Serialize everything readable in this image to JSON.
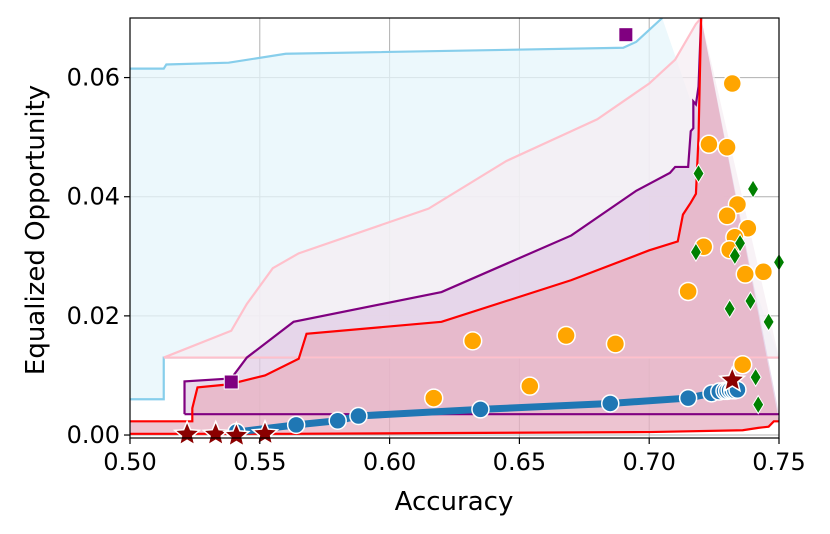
{
  "chart_data": {
    "type": "scatter",
    "xlabel": "Accuracy",
    "ylabel": "Equalized Opportunity",
    "xlim": [
      0.5,
      0.75
    ],
    "ylim": [
      -0.0005,
      0.07
    ],
    "xticks": [
      "0.50",
      "0.55",
      "0.60",
      "0.65",
      "0.70",
      "0.75"
    ],
    "yticks": [
      "0.00",
      "0.02",
      "0.04",
      "0.06"
    ],
    "grid": true,
    "colors": {
      "cyan": "#87ceeb",
      "pink": "#ffc0cb",
      "purple": "#800080",
      "red": "#ff0000",
      "orange": "#ffa500",
      "green": "#008000",
      "blue": "#1f77b4",
      "darkred": "#8b0000"
    },
    "bands": [
      {
        "color": "#87ceeb",
        "fill": "#e6f5fb",
        "upper": [
          [
            0.5,
            0.0615
          ],
          [
            0.513,
            0.0615
          ],
          [
            0.514,
            0.0622
          ],
          [
            0.538,
            0.0625
          ],
          [
            0.56,
            0.064
          ],
          [
            0.69,
            0.065
          ],
          [
            0.695,
            0.066
          ],
          [
            0.705,
            0.07
          ]
        ],
        "lower": [
          [
            0.5,
            0.006
          ],
          [
            0.513,
            0.006
          ],
          [
            0.513,
            0.013
          ],
          [
            0.55,
            0.013
          ],
          [
            0.75,
            0.013
          ]
        ]
      },
      {
        "color": "#ffc0cb",
        "fill": "#f5eef3",
        "upper": [
          [
            0.513,
            0.013
          ],
          [
            0.539,
            0.0175
          ],
          [
            0.545,
            0.022
          ],
          [
            0.555,
            0.028
          ],
          [
            0.565,
            0.0305
          ],
          [
            0.615,
            0.038
          ],
          [
            0.645,
            0.046
          ],
          [
            0.68,
            0.053
          ],
          [
            0.695,
            0.0575
          ],
          [
            0.7,
            0.059
          ],
          [
            0.705,
            0.061
          ],
          [
            0.71,
            0.063
          ],
          [
            0.718,
            0.069
          ],
          [
            0.72,
            0.07
          ]
        ],
        "lower": [
          [
            0.513,
            0.013
          ],
          [
            0.75,
            0.013
          ]
        ]
      },
      {
        "color": "#800080",
        "fill": "#e2cde6",
        "upper": [
          [
            0.521,
            0.0035
          ],
          [
            0.521,
            0.009
          ],
          [
            0.539,
            0.0095
          ],
          [
            0.545,
            0.013
          ],
          [
            0.557,
            0.017
          ],
          [
            0.563,
            0.019
          ],
          [
            0.62,
            0.024
          ],
          [
            0.67,
            0.0335
          ],
          [
            0.695,
            0.041
          ],
          [
            0.708,
            0.044
          ],
          [
            0.71,
            0.045
          ],
          [
            0.715,
            0.045
          ],
          [
            0.716,
            0.051
          ],
          [
            0.717,
            0.0515
          ],
          [
            0.717,
            0.056
          ],
          [
            0.718,
            0.0555
          ],
          [
            0.719,
            0.0585
          ],
          [
            0.72,
            0.07
          ]
        ],
        "lower": [
          [
            0.521,
            0.0035
          ],
          [
            0.75,
            0.0035
          ]
        ]
      },
      {
        "color": "#ff0000",
        "fill": "#e7b0c2",
        "upper": [
          [
            0.5,
            0.0023
          ],
          [
            0.524,
            0.0023
          ],
          [
            0.524,
            0.0045
          ],
          [
            0.526,
            0.008
          ],
          [
            0.538,
            0.0085
          ],
          [
            0.552,
            0.01
          ],
          [
            0.565,
            0.0128
          ],
          [
            0.568,
            0.017
          ],
          [
            0.62,
            0.019
          ],
          [
            0.67,
            0.026
          ],
          [
            0.7,
            0.031
          ],
          [
            0.711,
            0.0325
          ],
          [
            0.713,
            0.037
          ],
          [
            0.716,
            0.039
          ],
          [
            0.718,
            0.0405
          ],
          [
            0.719,
            0.05
          ],
          [
            0.72,
            0.07
          ]
        ],
        "lower": [
          [
            0.5,
            0.0002
          ],
          [
            0.56,
            0.0002
          ],
          [
            0.7,
            0.0005
          ],
          [
            0.736,
            0.0008
          ],
          [
            0.742,
            0.0012
          ],
          [
            0.746,
            0.0014
          ],
          [
            0.748,
            0.0023
          ],
          [
            0.75,
            0.0023
          ]
        ]
      }
    ],
    "series": [
      {
        "marker": "line-circle",
        "color": "#1f77b4",
        "points": [
          [
            0.541,
            0.0005
          ],
          [
            0.564,
            0.0017
          ],
          [
            0.58,
            0.0024
          ],
          [
            0.588,
            0.0032
          ],
          [
            0.635,
            0.0043
          ],
          [
            0.685,
            0.0053
          ],
          [
            0.715,
            0.0062
          ],
          [
            0.724,
            0.007
          ],
          [
            0.727,
            0.0073
          ],
          [
            0.729,
            0.0074
          ],
          [
            0.73,
            0.0074
          ],
          [
            0.731,
            0.0075
          ],
          [
            0.732,
            0.0075
          ],
          [
            0.733,
            0.0075
          ],
          [
            0.734,
            0.0076
          ]
        ]
      },
      {
        "marker": "circle",
        "color": "#ffa500",
        "points": [
          [
            0.732,
            0.059
          ],
          [
            0.723,
            0.0488
          ],
          [
            0.73,
            0.0483
          ],
          [
            0.734,
            0.0387
          ],
          [
            0.73,
            0.0368
          ],
          [
            0.738,
            0.0347
          ],
          [
            0.733,
            0.0332
          ],
          [
            0.721,
            0.0316
          ],
          [
            0.731,
            0.0311
          ],
          [
            0.744,
            0.0274
          ],
          [
            0.737,
            0.027
          ],
          [
            0.715,
            0.0241
          ],
          [
            0.632,
            0.0158
          ],
          [
            0.668,
            0.0167
          ],
          [
            0.687,
            0.0153
          ],
          [
            0.736,
            0.0118
          ],
          [
            0.654,
            0.0082
          ],
          [
            0.617,
            0.0062
          ]
        ]
      },
      {
        "marker": "diamond",
        "color": "#008000",
        "points": [
          [
            0.719,
            0.0439
          ],
          [
            0.74,
            0.0413
          ],
          [
            0.718,
            0.0307
          ],
          [
            0.735,
            0.0322
          ],
          [
            0.733,
            0.0301
          ],
          [
            0.739,
            0.0225
          ],
          [
            0.75,
            0.029
          ],
          [
            0.731,
            0.0212
          ],
          [
            0.746,
            0.019
          ],
          [
            0.741,
            0.0097
          ],
          [
            0.742,
            0.0051
          ]
        ]
      },
      {
        "marker": "square",
        "color": "#800080",
        "points": [
          [
            0.691,
            0.0672
          ],
          [
            0.539,
            0.0089
          ]
        ]
      },
      {
        "marker": "star",
        "color": "#8b0000",
        "points": [
          [
            0.522,
            0.0001
          ],
          [
            0.533,
            0.0001
          ],
          [
            0.541,
            -0.0001
          ],
          [
            0.552,
            0.0002
          ],
          [
            0.732,
            0.0092
          ]
        ]
      }
    ]
  }
}
